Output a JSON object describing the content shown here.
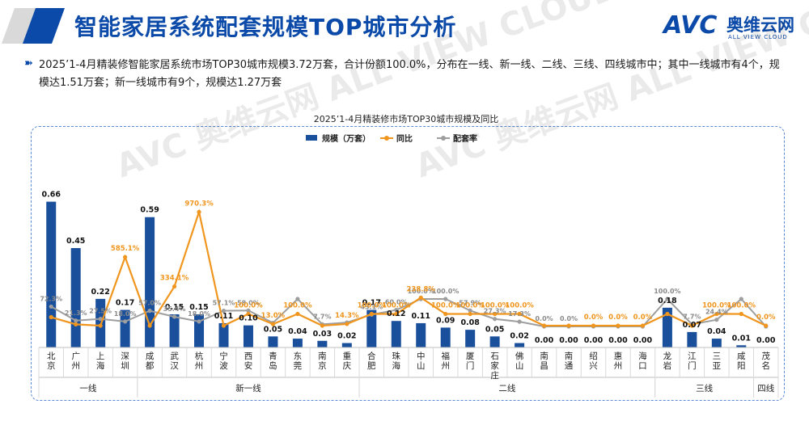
{
  "header": {
    "title": "智能家居系统配套规模TOP城市分析",
    "logo_main": "AVC",
    "logo_name": "奥维云网",
    "logo_sub": "ALL VIEW CLOUD"
  },
  "summary": {
    "bullet": "➽",
    "text": "2025’1-4月精装修智能家居系统市场TOP30城市规模3.72万套，合计份额100.0%，分布在一线、新一线、二线、三线、四线城市中；其中一线城市有4个，规模达1.51万套；新一线城市有9个，规模达1.27万套"
  },
  "watermark": "AVC 奥维云网 ALL VIEW CLOUD",
  "chart_data": {
    "type": "bar",
    "title": "2025’1-4月精装修市场TOP30城市规模及同比",
    "legend": [
      "规模（万套）",
      "同比",
      "配套率"
    ],
    "legend_position": "top-center",
    "categories": [
      "北京",
      "广州",
      "上海",
      "深圳",
      "成都",
      "武汉",
      "杭州",
      "宁波",
      "西安",
      "青岛",
      "东莞",
      "南京",
      "重庆",
      "合肥",
      "珠海",
      "中山",
      "福州",
      "厦门",
      "石家庄",
      "佛山",
      "南昌",
      "南通",
      "绍兴",
      "惠州",
      "海口",
      "龙岩",
      "江门",
      "三亚",
      "咸阳",
      "茂名"
    ],
    "series": [
      {
        "name": "规模（万套）",
        "type": "bar",
        "color": "#1a4f9c",
        "values": [
          0.66,
          0.45,
          0.22,
          0.17,
          0.59,
          0.15,
          0.15,
          0.11,
          0.1,
          0.05,
          0.04,
          0.03,
          0.02,
          0.17,
          0.12,
          0.11,
          0.09,
          0.08,
          0.05,
          0.02,
          0.0,
          0.0,
          0.0,
          0.0,
          0.0,
          0.18,
          0.07,
          0.04,
          0.01,
          0.0
        ],
        "labels": [
          "0.66",
          "0.45",
          "0.22",
          "0.17",
          "0.59",
          "0.15",
          "0.15",
          "0.11",
          "0.10",
          "0.05",
          "0.04",
          "0.03",
          "0.02",
          "0.17",
          "0.12",
          "0.11",
          "0.09",
          "0.08",
          "0.05",
          "0.02",
          "0.00",
          "0.00",
          "0.00",
          "0.00",
          "0.00",
          "0.18",
          "0.07",
          "0.04",
          "0.01",
          "0.00"
        ]
      },
      {
        "name": "同比",
        "type": "line",
        "color": "#f0961e",
        "values": [
          72.3,
          11.3,
          0,
          585.1,
          0,
          334.1,
          970.3,
          0,
          100.0,
          13.0,
          100.0,
          0,
          14.3,
          100.0,
          100.0,
          238.8,
          100.0,
          100.0,
          100.0,
          100.0,
          0,
          0,
          0.0,
          0.0,
          0.0,
          100.0,
          0,
          100.0,
          100.0,
          0.0
        ],
        "labels": [
          "",
          "",
          "",
          "585.1%",
          "",
          "334.1%",
          "970.3%",
          "",
          "100.0%",
          "13.0%",
          "100.0%",
          "",
          "14.3%",
          "100.0%",
          "100.0%",
          "238.8%",
          "100.0%",
          "100.0%",
          "100.0%",
          "100.0%",
          "",
          "",
          "0.0%",
          "0.0%",
          "0.0%",
          "",
          "",
          "100.0%",
          "100.0%",
          "0.0%"
        ]
      },
      {
        "name": "配套率",
        "type": "line",
        "color": "#9e9e9e",
        "values": [
          72.3,
          21.3,
          27.5,
          18.0,
          57.0,
          35.4,
          18.0,
          57.1,
          58.0,
          13.0,
          100.0,
          7.7,
          14.3,
          43.1,
          60.0,
          100.0,
          100.0,
          57.9,
          27.3,
          17.3,
          0.0,
          0.0,
          0.0,
          0.0,
          0.0,
          100.0,
          7.7,
          24.4,
          100.0,
          0.0
        ],
        "labels": [
          "72.3%",
          "21.3%",
          "27.5%",
          "18.0%",
          "57.0%",
          "35.4%",
          "18.0%",
          "57.1%",
          "58.0%",
          "",
          "",
          "7.7%",
          "",
          "43.1%",
          "60.0%",
          "100.0%",
          "100.0%",
          "57.9%",
          "27.3%",
          "17.3%",
          "0.0%",
          "0.0%",
          "",
          "",
          "",
          "100.0%",
          "7.7%",
          "24.4%",
          "",
          ""
        ]
      }
    ],
    "tiers": [
      {
        "label": "一线",
        "start": 0,
        "end": 3
      },
      {
        "label": "新一线",
        "start": 4,
        "end": 12
      },
      {
        "label": "二线",
        "start": 13,
        "end": 24
      },
      {
        "label": "三线",
        "start": 25,
        "end": 28
      },
      {
        "label": "四线",
        "start": 29,
        "end": 29
      }
    ],
    "xlabel": "",
    "ylabel": "",
    "ylim": [
      0,
      0.75
    ],
    "y2lim": [
      0,
      1100
    ],
    "grid": false
  }
}
